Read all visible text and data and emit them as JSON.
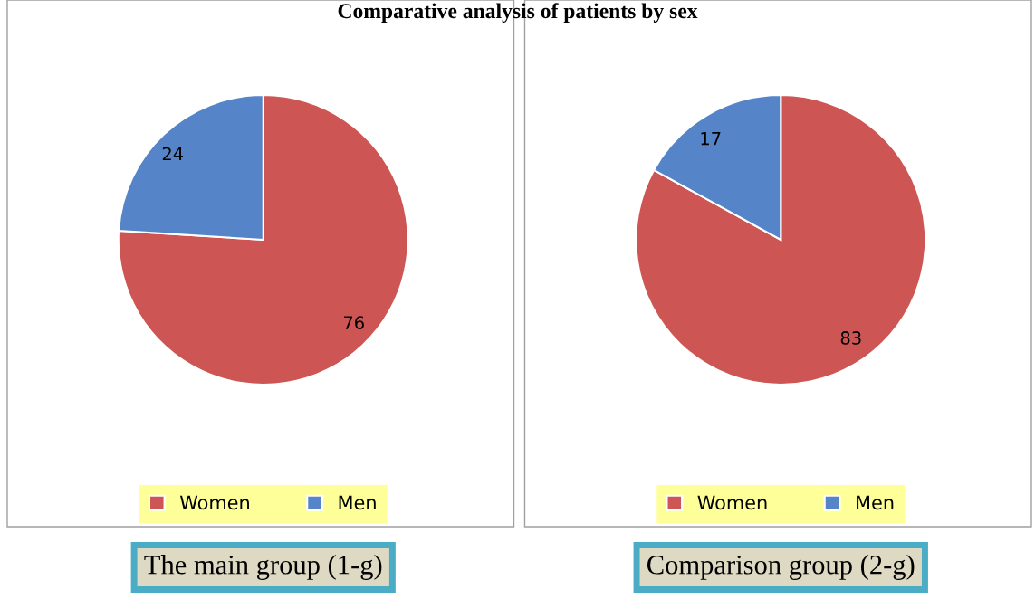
{
  "chart_data": [
    {
      "type": "pie",
      "title": "Comparative analysis of patients by sex",
      "categories": [
        "Women",
        "Men"
      ],
      "values": [
        76,
        24
      ],
      "colors": [
        "#cd5654",
        "#5585c8"
      ],
      "data_labels": true,
      "legend": "bottom",
      "annotations": [
        "The main group (1-g)"
      ]
    },
    {
      "type": "pie",
      "categories": [
        "Women",
        "Men"
      ],
      "values": [
        83,
        17
      ],
      "colors": [
        "#cd5654",
        "#5585c8"
      ],
      "data_labels": true,
      "legend": "bottom",
      "annotations": [
        "Comparison group (2-g)"
      ]
    }
  ]
}
